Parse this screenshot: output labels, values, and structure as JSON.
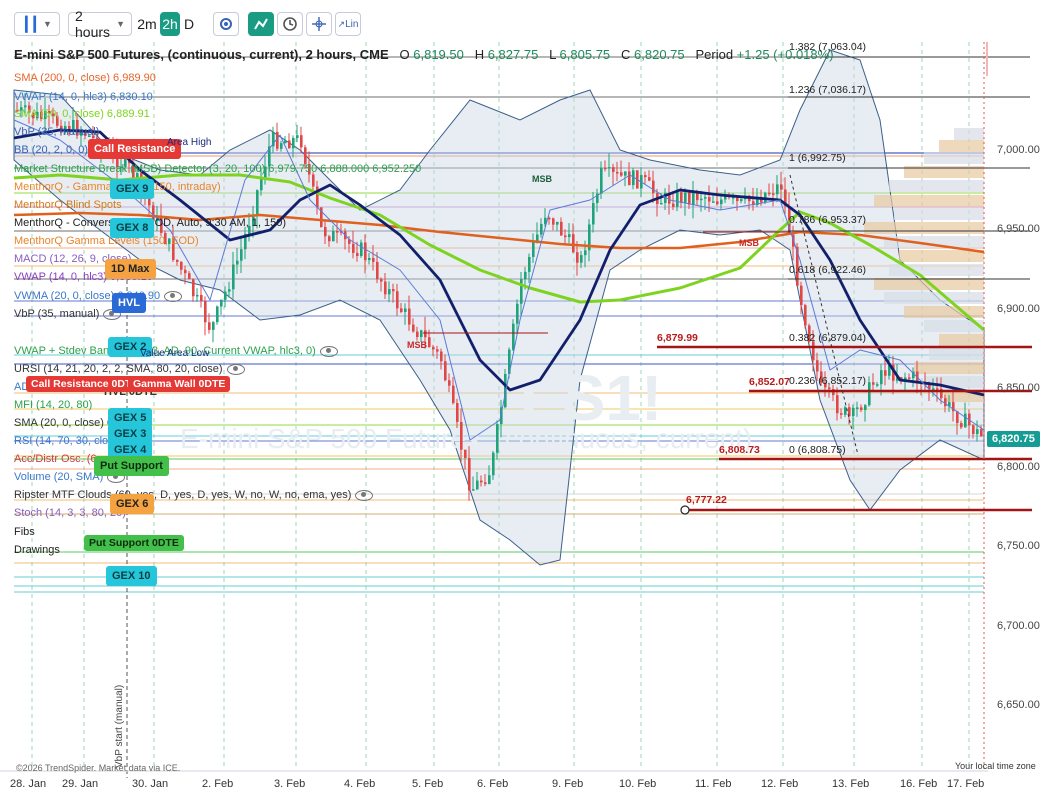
{
  "toolbar": {
    "candle_icon": "candlestick-icon",
    "interval": "2 hours",
    "interval_opts": [
      "2m",
      "2h",
      "D"
    ],
    "tools": [
      "gear-icon",
      "trend-icon",
      "clock-icon",
      "crosshair-icon",
      "log-scale-icon"
    ],
    "log_label": "Lin"
  },
  "header": {
    "symbol": "E-mini S&P 500 Futures, (continuous, current), 2 hours, CME",
    "open_label": "O",
    "open": "6,819.50",
    "high_label": "H",
    "high": "6,827.75",
    "low_label": "L",
    "low": "6,805.75",
    "close_label": "C",
    "close": "6,820.75",
    "period_label": "Period",
    "period": "+1.25 (+0.018%)"
  },
  "legend": [
    {
      "text": "SMA (200, 0, close)  6,989.90",
      "color": "#e8652b"
    },
    {
      "text": "VWAP (14, 0, hlc3)  6,830.10",
      "color": "#3a78c9"
    },
    {
      "text": "SMA (50, 0, close)  6,889.91",
      "color": "#7ed321"
    },
    {
      "text": "VbP (35, manual)",
      "color": "#3a62b5"
    },
    {
      "text": "BB (20, 2, 0, 0)  6,848.70  6,910.93",
      "color": "#3a62b5"
    },
    {
      "text": "Market Structure Break (MSB) Detector (3, 20, 100)  6,979.750  6,888.000  6,952.250",
      "color": "#2aa24a"
    },
    {
      "text": "MenthorQ - Gamma Levels (150, intraday)",
      "color": "#e8852b"
    },
    {
      "text": "MenthorQ Blind Spots",
      "color": "#d67a12"
    },
    {
      "text": "MenthorQ - Conversion (1, EOD, Auto, 9:30 AM, 1, 150)",
      "color": "#222"
    },
    {
      "text": "MenthorQ Gamma Levels (150, EOD)",
      "color": "#e8852b"
    },
    {
      "text": "MACD (12, 26, 9, close)",
      "color": "#8a5cc2"
    },
    {
      "text": "VWAP (14, 0, hlc3)  6,830.10",
      "color": "#8a3dbf"
    },
    {
      "text": "VWMA (20, 0, close)  6,840.90",
      "color": "#3a78c9"
    },
    {
      "text": "VbP (35, manual)",
      "color": "#333"
    },
    {
      "text": "VWAP + Stdev Bands (1, 2, 3, AD, 90, Current VWAP, hlc3, 0)",
      "color": "#2aa24a"
    },
    {
      "text": "URSI (14, 21, 20, 2, 2, SMA, 80, 20, close)",
      "color": "#333"
    },
    {
      "text": "ADX",
      "color": "#3a78c9"
    },
    {
      "text": "HVL 0DTE",
      "color": "#333"
    },
    {
      "text": "MFI (14, 20, 80)",
      "color": "#2aa24a"
    },
    {
      "text": "SMA (20, 0, close)  6,848.70",
      "color": "#333"
    },
    {
      "text": "RSI (14, 70, 30, close)",
      "color": "#3a78c9"
    },
    {
      "text": "Acc/Distr Osc. (6, ...",
      "color": "#d03a3a"
    },
    {
      "text": "Volume (20, SMA)",
      "color": "#3a78c9"
    },
    {
      "text": "Ripster MTF Clouds (60, yes, D, yes, D, yes, W, no, W, no, ema, yes)",
      "color": "#333"
    },
    {
      "text": "Stoch (14, 3, 3, 80, 20)",
      "color": "#8a5cc2"
    },
    {
      "text": "Fibs",
      "color": "#222"
    },
    {
      "text": "Drawings",
      "color": "#222"
    }
  ],
  "pills": [
    {
      "text": "Call Resistance",
      "bg": "#e53935",
      "fg": "#ffffff"
    },
    {
      "text": "GEX 9",
      "bg": "#26c6da",
      "fg": "#0b3d44"
    },
    {
      "text": "GEX 8",
      "bg": "#26c6da",
      "fg": "#0b3d44"
    },
    {
      "text": "1D Max",
      "bg": "#f4a340",
      "fg": "#222222"
    },
    {
      "text": "HVL",
      "bg": "#2a6ad6",
      "fg": "#ffffff"
    },
    {
      "text": "GEX 2",
      "bg": "#26c6da",
      "fg": "#0b3d44"
    },
    {
      "text": "Call Resistance 0DTE",
      "bg": "#e53935",
      "fg": "#ffffff"
    },
    {
      "text": "Gamma Wall 0DTE",
      "bg": "#e53935",
      "fg": "#ffffff"
    },
    {
      "text": "GEX 5",
      "bg": "#26c6da",
      "fg": "#0b3d44"
    },
    {
      "text": "GEX 3",
      "bg": "#26c6da",
      "fg": "#0b3d44"
    },
    {
      "text": "GEX 4",
      "bg": "#26c6da",
      "fg": "#0b3d44"
    },
    {
      "text": "Put Support",
      "bg": "#43c04a",
      "fg": "#0e2a10"
    },
    {
      "text": "GEX 6",
      "bg": "#f4a340",
      "fg": "#222222"
    },
    {
      "text": "Put Support 0DTE",
      "bg": "#43c04a",
      "fg": "#0e2a10"
    },
    {
      "text": "GEX 10",
      "bg": "#26c6da",
      "fg": "#0b3d44"
    }
  ],
  "annotations": {
    "value_area_high": "Area High",
    "value_area_low": "Value Area Low",
    "vbp_start": "VbP start (manual)",
    "msb": "MSB",
    "watermark_sym": "ES1!",
    "watermark_name": "E-mini S&P 500 Futures, (continuous, current)"
  },
  "levels": {
    "l1": "6,879.99",
    "l2": "6,852.07",
    "l3": "6,808.73",
    "l4": "6,777.22",
    "current": "6,820.75"
  },
  "fibs": [
    "1.382 (7,063.04)",
    "1.236 (7,036.17)",
    "1 (6,992.75)",
    "0.786 (6,953.37)",
    "0.618 (6,922.46)",
    "0.382 (6,879.04)",
    "0.236 (6,852.17)",
    "0 (6,808.75)"
  ],
  "yaxis": [
    "7,000.00",
    "6,950.00",
    "6,900.00",
    "6,850.00",
    "6,800.00",
    "6,750.00",
    "6,700.00",
    "6,650.00"
  ],
  "xaxis": [
    "28. Jan",
    "29. Jan",
    "30. Jan",
    "2. Feb",
    "3. Feb",
    "4. Feb",
    "5. Feb",
    "6. Feb",
    "9. Feb",
    "10. Feb",
    "11. Feb",
    "12. Feb",
    "13. Feb",
    "16. Feb",
    "17. Feb"
  ],
  "footer": {
    "credit": "©2026 TrendSpider. Market data via ICE.",
    "timezone": "Your local time zone"
  },
  "colors": {
    "sma200": "#e0601e",
    "sma50": "#7ed321",
    "vwap_dark": "#12206b",
    "up": "#1fa37a",
    "down": "#e04848",
    "level": "#a31515"
  }
}
